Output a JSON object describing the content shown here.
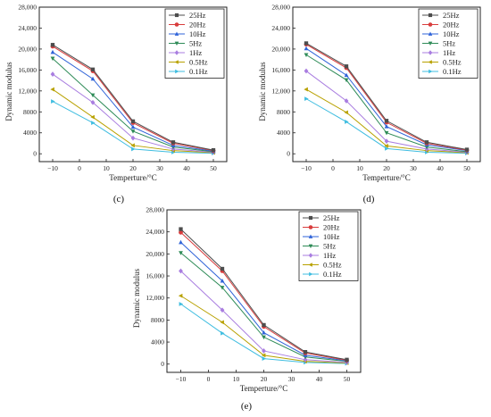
{
  "colors": {
    "25Hz": "#4d4d4d",
    "20Hz": "#d93d3d",
    "10Hz": "#2f63d8",
    "5Hz": "#2e8b57",
    "1Hz": "#a97de0",
    "0.5Hz": "#b8a100",
    "0.1Hz": "#3fbde0"
  },
  "chart_data": [
    {
      "type": "line",
      "caption": "(c)",
      "xlabel": "Temperture/°C",
      "ylabel": "Dynamic modulus",
      "x": [
        -10,
        5,
        20,
        35,
        50
      ],
      "xticks": [
        -10,
        0,
        10,
        20,
        30,
        40,
        50
      ],
      "yticks": [
        0,
        4000,
        8000,
        12000,
        16000,
        20000,
        24000,
        28000
      ],
      "ytick_labels": [
        "0",
        "4000",
        "8000",
        "12,000",
        "16,000",
        "20,000",
        "24,000",
        "28,000"
      ],
      "xlim": [
        -15,
        55
      ],
      "ylim": [
        -1500,
        28000
      ],
      "legend_position": "top-right",
      "series": [
        {
          "name": "25Hz",
          "marker": "square",
          "values": [
            20800,
            16100,
            6200,
            2200,
            700
          ]
        },
        {
          "name": "20Hz",
          "marker": "circle",
          "values": [
            20500,
            15800,
            5900,
            2000,
            600
          ]
        },
        {
          "name": "10Hz",
          "marker": "triangle-up",
          "values": [
            19400,
            14300,
            5100,
            1600,
            500
          ]
        },
        {
          "name": "5Hz",
          "marker": "triangle-down",
          "values": [
            18200,
            11200,
            4300,
            1300,
            400
          ]
        },
        {
          "name": "1Hz",
          "marker": "diamond",
          "values": [
            15200,
            9800,
            3000,
            900,
            300
          ]
        },
        {
          "name": "0.5Hz",
          "marker": "triangle-left",
          "values": [
            12300,
            7000,
            1600,
            600,
            200
          ]
        },
        {
          "name": "0.1Hz",
          "marker": "triangle-right",
          "values": [
            10000,
            5900,
            900,
            300,
            100
          ]
        }
      ]
    },
    {
      "type": "line",
      "caption": "(d)",
      "xlabel": "Temperture/°C",
      "ylabel": "Dynamic modulus",
      "x": [
        -10,
        5,
        20,
        35,
        50
      ],
      "xticks": [
        -10,
        0,
        10,
        20,
        30,
        40,
        50
      ],
      "yticks": [
        0,
        4000,
        8000,
        12000,
        16000,
        20000,
        24000,
        28000
      ],
      "ytick_labels": [
        "0",
        "4000",
        "8000",
        "12,000",
        "16,000",
        "20,000",
        "24,000",
        "28,000"
      ],
      "xlim": [
        -15,
        55
      ],
      "ylim": [
        -1500,
        28000
      ],
      "legend_position": "top-right",
      "series": [
        {
          "name": "25Hz",
          "marker": "square",
          "values": [
            21100,
            16700,
            6300,
            2200,
            800
          ]
        },
        {
          "name": "20Hz",
          "marker": "circle",
          "values": [
            20900,
            16400,
            6000,
            2000,
            700
          ]
        },
        {
          "name": "10Hz",
          "marker": "triangle-up",
          "values": [
            20100,
            15000,
            5200,
            1700,
            600
          ]
        },
        {
          "name": "5Hz",
          "marker": "triangle-down",
          "values": [
            18900,
            14100,
            4000,
            1300,
            400
          ]
        },
        {
          "name": "1Hz",
          "marker": "diamond",
          "values": [
            15800,
            10100,
            2400,
            900,
            300
          ]
        },
        {
          "name": "0.5Hz",
          "marker": "triangle-left",
          "values": [
            12300,
            7900,
            1500,
            600,
            200
          ]
        },
        {
          "name": "0.1Hz",
          "marker": "triangle-right",
          "values": [
            10500,
            6100,
            1000,
            300,
            100
          ]
        }
      ]
    },
    {
      "type": "line",
      "caption": "(e)",
      "xlabel": "Temperture/°C",
      "ylabel": "Dynamic modulus",
      "x": [
        -10,
        5,
        20,
        35,
        50
      ],
      "xticks": [
        -10,
        0,
        10,
        20,
        30,
        40,
        50
      ],
      "yticks": [
        0,
        4000,
        8000,
        12000,
        16000,
        20000,
        24000,
        28000
      ],
      "ytick_labels": [
        "0",
        "4000",
        "8000",
        "12,000",
        "16,000",
        "20,000",
        "24,000",
        "28,000"
      ],
      "xlim": [
        -15,
        55
      ],
      "ylim": [
        -1500,
        28000
      ],
      "legend_position": "top-right",
      "series": [
        {
          "name": "25Hz",
          "marker": "square",
          "values": [
            24500,
            17300,
            7100,
            2200,
            800
          ]
        },
        {
          "name": "20Hz",
          "marker": "circle",
          "values": [
            23900,
            16900,
            6800,
            2000,
            700
          ]
        },
        {
          "name": "10Hz",
          "marker": "triangle-up",
          "values": [
            22100,
            15100,
            5700,
            1600,
            600
          ]
        },
        {
          "name": "5Hz",
          "marker": "triangle-down",
          "values": [
            20200,
            13900,
            4900,
            1300,
            500
          ]
        },
        {
          "name": "1Hz",
          "marker": "diamond",
          "values": [
            16900,
            9800,
            2400,
            800,
            300
          ]
        },
        {
          "name": "0.5Hz",
          "marker": "triangle-left",
          "values": [
            12400,
            7600,
            1600,
            500,
            200
          ]
        },
        {
          "name": "0.1Hz",
          "marker": "triangle-right",
          "values": [
            10900,
            5600,
            1000,
            300,
            100
          ]
        }
      ]
    }
  ]
}
